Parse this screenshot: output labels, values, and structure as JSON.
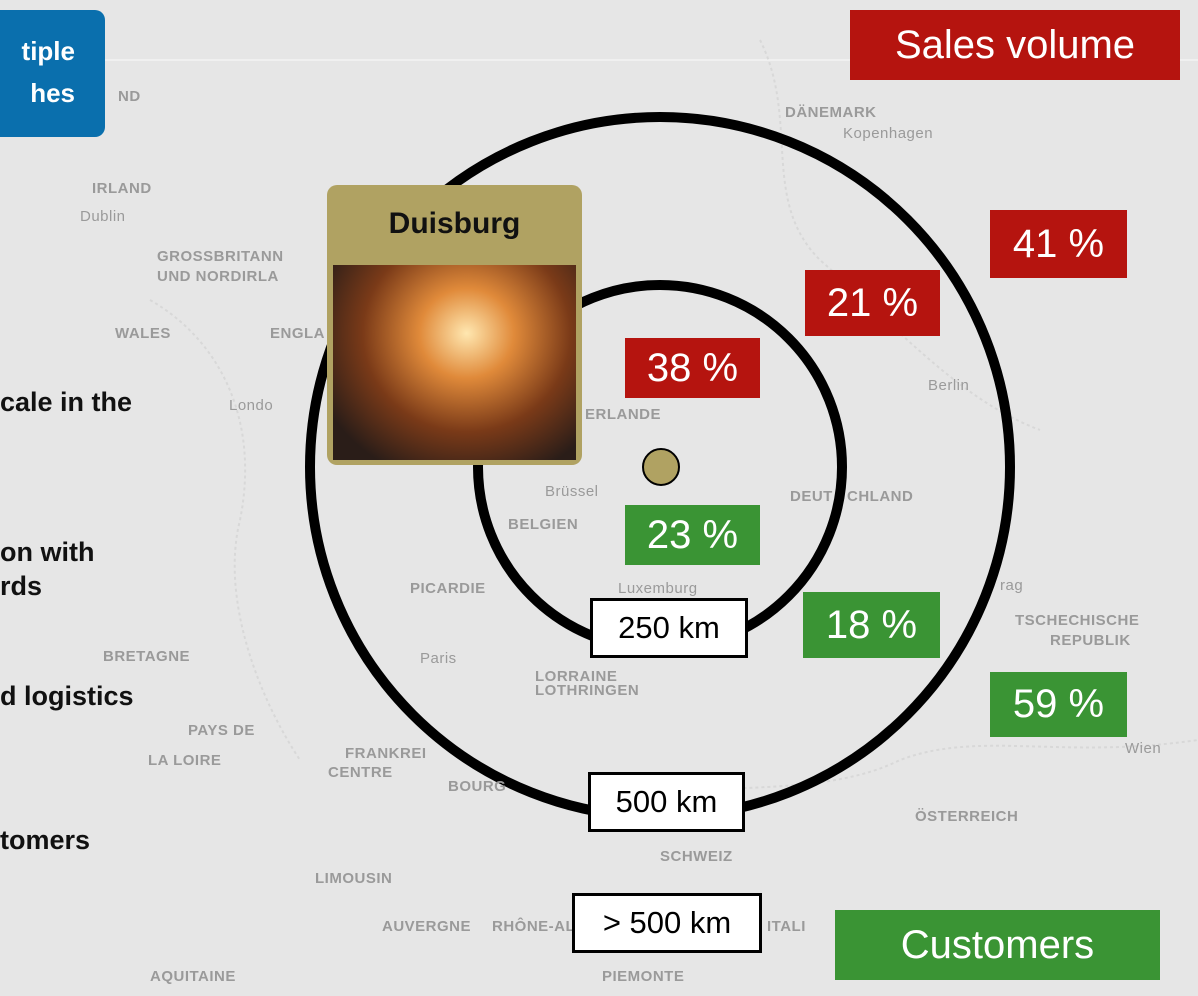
{
  "button": {
    "lines": [
      "tiple",
      "hes"
    ]
  },
  "side_text": [
    "cale in the",
    "on with",
    "rds",
    "d logistics",
    "tomers"
  ],
  "map_labels": [
    "DÄNEMARK",
    "Kopenhagen",
    "IRLAND",
    "Dublin",
    "GROSSBRITANN",
    "UND NORDIRLA",
    "WALES",
    "ENGLA",
    "Londo",
    "ERLANDE",
    "Brüssel",
    "BELGIEN",
    "DEUT",
    "CHLAND",
    "Berlin",
    "Luxemburg",
    "PICARDIE",
    "Paris",
    "BRETAGNE",
    "LORRAINE",
    "LOTHRINGEN",
    "PAYS DE",
    "LA LOIRE",
    "FRANKREI",
    "CENTRE",
    "BOURG",
    "rag",
    "TSCHECHISCHE",
    "REPUBLIK",
    "Wien",
    "ÖSTERREICH",
    "SCHWEIZ",
    "LIMOUSIN",
    "RHÔNE-AL",
    "AUVERGNE",
    "AQUITAINE",
    "PIEMONTE",
    "ITALI",
    "ND"
  ],
  "legend": {
    "sales": "Sales volume",
    "customers": "Customers"
  },
  "plant": {
    "name": "Duisburg"
  },
  "sales_shares": [
    "38 %",
    "21 %",
    "41 %"
  ],
  "customer_shares": [
    "23 %",
    "18 %",
    "59 %"
  ],
  "radius_labels": [
    "250 km",
    "500 km",
    "> 500 km"
  ]
}
